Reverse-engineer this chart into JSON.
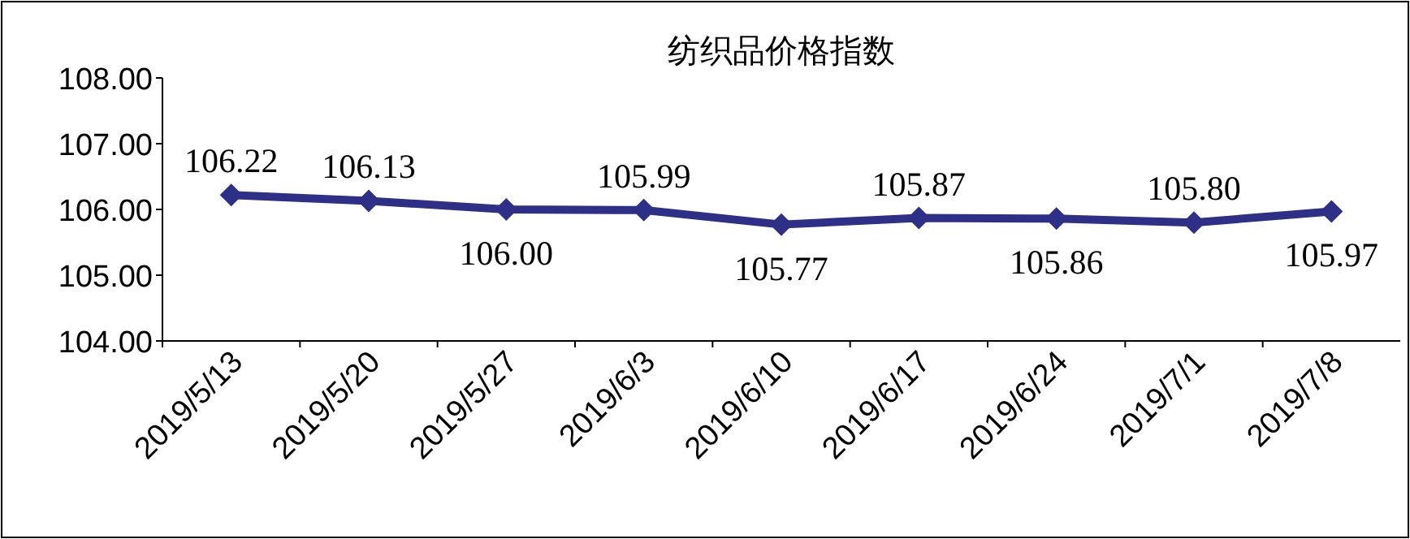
{
  "chart_data": {
    "type": "line",
    "title": "纺织品价格指数",
    "categories": [
      "2019/5/13",
      "2019/5/20",
      "2019/5/27",
      "2019/6/3",
      "2019/6/10",
      "2019/6/17",
      "2019/6/24",
      "2019/7/1",
      "2019/7/8"
    ],
    "series": [
      {
        "color": "#2e2f86",
        "values": [
          106.22,
          106.13,
          106.0,
          105.99,
          105.77,
          105.87,
          105.86,
          105.8,
          105.97
        ],
        "value_labels": [
          "106.22",
          "106.13",
          "106.00",
          "105.99",
          "105.77",
          "105.87",
          "105.86",
          "105.80",
          "105.97"
        ]
      }
    ],
    "ylim": [
      104,
      108
    ],
    "yticks": [
      {
        "value": 104,
        "label": "104.00"
      },
      {
        "value": 105,
        "label": "105.00"
      },
      {
        "value": 106,
        "label": "106.00"
      },
      {
        "value": 107,
        "label": "107.00"
      },
      {
        "value": 108,
        "label": "108.00"
      }
    ],
    "marker": "diamond",
    "line_style": "solid",
    "grid": false
  }
}
